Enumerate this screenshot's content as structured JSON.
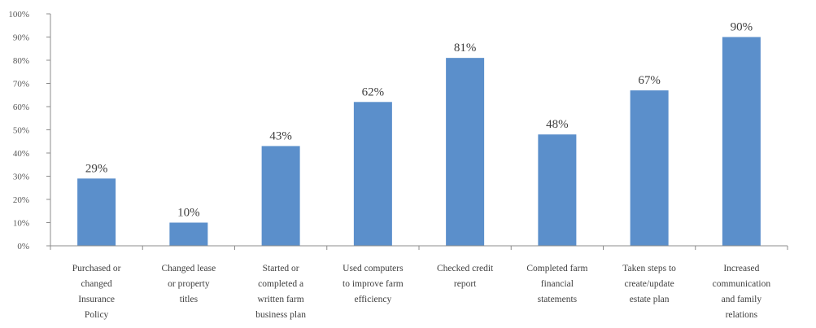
{
  "chart_data": {
    "type": "bar",
    "title": "",
    "xlabel": "",
    "ylabel": "",
    "ylim": [
      0,
      100
    ],
    "yticks": [
      "0%",
      "10%",
      "20%",
      "30%",
      "40%",
      "50%",
      "60%",
      "70%",
      "80%",
      "90%",
      "100%"
    ],
    "grid": false,
    "legend": "none",
    "bar_color": "#5b8fcb",
    "categories": [
      [
        "Purchased or",
        "changed",
        "Insurance",
        "Policy"
      ],
      [
        "Changed lease",
        "or property",
        "titles"
      ],
      [
        "Started or",
        "completed a",
        "written farm",
        "business plan"
      ],
      [
        "Used computers",
        "to improve farm",
        "efficiency"
      ],
      [
        "Checked credit",
        "report"
      ],
      [
        "Completed farm",
        "financial",
        "statements"
      ],
      [
        "Taken steps to",
        "create/update",
        "estate plan"
      ],
      [
        "Increased",
        "communication",
        "and family",
        "relations"
      ]
    ],
    "values": [
      29,
      10,
      43,
      62,
      81,
      48,
      67,
      90
    ],
    "data_labels": [
      "29%",
      "10%",
      "43%",
      "62%",
      "81%",
      "48%",
      "67%",
      "90%"
    ]
  }
}
